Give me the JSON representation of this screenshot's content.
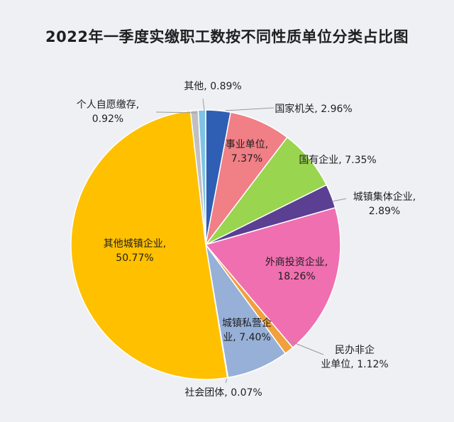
{
  "chart_data": {
    "type": "pie",
    "title": "2022年一季度实缴职工数按不同性质单位分类占比图",
    "slices": [
      {
        "label": "国家机关",
        "value_text": "2.96%",
        "value": 2.96,
        "color": "#2f5fb4",
        "label_lines": [
          "国家机关, 2.96%"
        ]
      },
      {
        "label": "事业单位",
        "value_text": "7.37%",
        "value": 7.37,
        "color": "#f07f86",
        "label_lines": [
          "事业单位,",
          "7.37%"
        ]
      },
      {
        "label": "国有企业",
        "value_text": "7.35%",
        "value": 7.35,
        "color": "#99d54e",
        "label_lines": [
          "国有企业, 7.35%"
        ]
      },
      {
        "label": "城镇集体企业",
        "value_text": "2.89%",
        "value": 2.89,
        "color": "#5b3f93",
        "label_lines": [
          "城镇集体企业,",
          "2.89%"
        ]
      },
      {
        "label": "外商投资企业",
        "value_text": "18.26%",
        "value": 18.26,
        "color": "#f06fb0",
        "label_lines": [
          "外商投资企业,",
          "18.26%"
        ]
      },
      {
        "label": "民办非企业单位",
        "value_text": "1.12%",
        "value": 1.12,
        "color": "#f0a03c",
        "label_lines": [
          "民办非企",
          "业单位, 1.12%"
        ]
      },
      {
        "label": "城镇私营企业",
        "value_text": "7.40%",
        "value": 7.4,
        "color": "#97b0d8",
        "label_lines": [
          "城镇私营企",
          "业, 7.40%"
        ]
      },
      {
        "label": "社会团体",
        "value_text": "0.07%",
        "value": 0.07,
        "color": "#6f8fc6",
        "label_lines": [
          "社会团体, 0.07%"
        ]
      },
      {
        "label": "其他城镇企业",
        "value_text": "50.77%",
        "value": 50.77,
        "color": "#ffc000",
        "label_lines": [
          "其他城镇企业,",
          "50.77%"
        ]
      },
      {
        "label": "个人自愿缴存",
        "value_text": "0.92%",
        "value": 0.92,
        "color": "#c0c0c0",
        "label_lines": [
          "个人自愿缴存,",
          "0.92%"
        ]
      },
      {
        "label": "其他",
        "value_text": "0.89%",
        "value": 0.89,
        "color": "#7fc3e6",
        "label_lines": [
          "其他, 0.89%"
        ]
      }
    ],
    "legend": "none",
    "start_angle": "12 o'clock, clockwise"
  }
}
